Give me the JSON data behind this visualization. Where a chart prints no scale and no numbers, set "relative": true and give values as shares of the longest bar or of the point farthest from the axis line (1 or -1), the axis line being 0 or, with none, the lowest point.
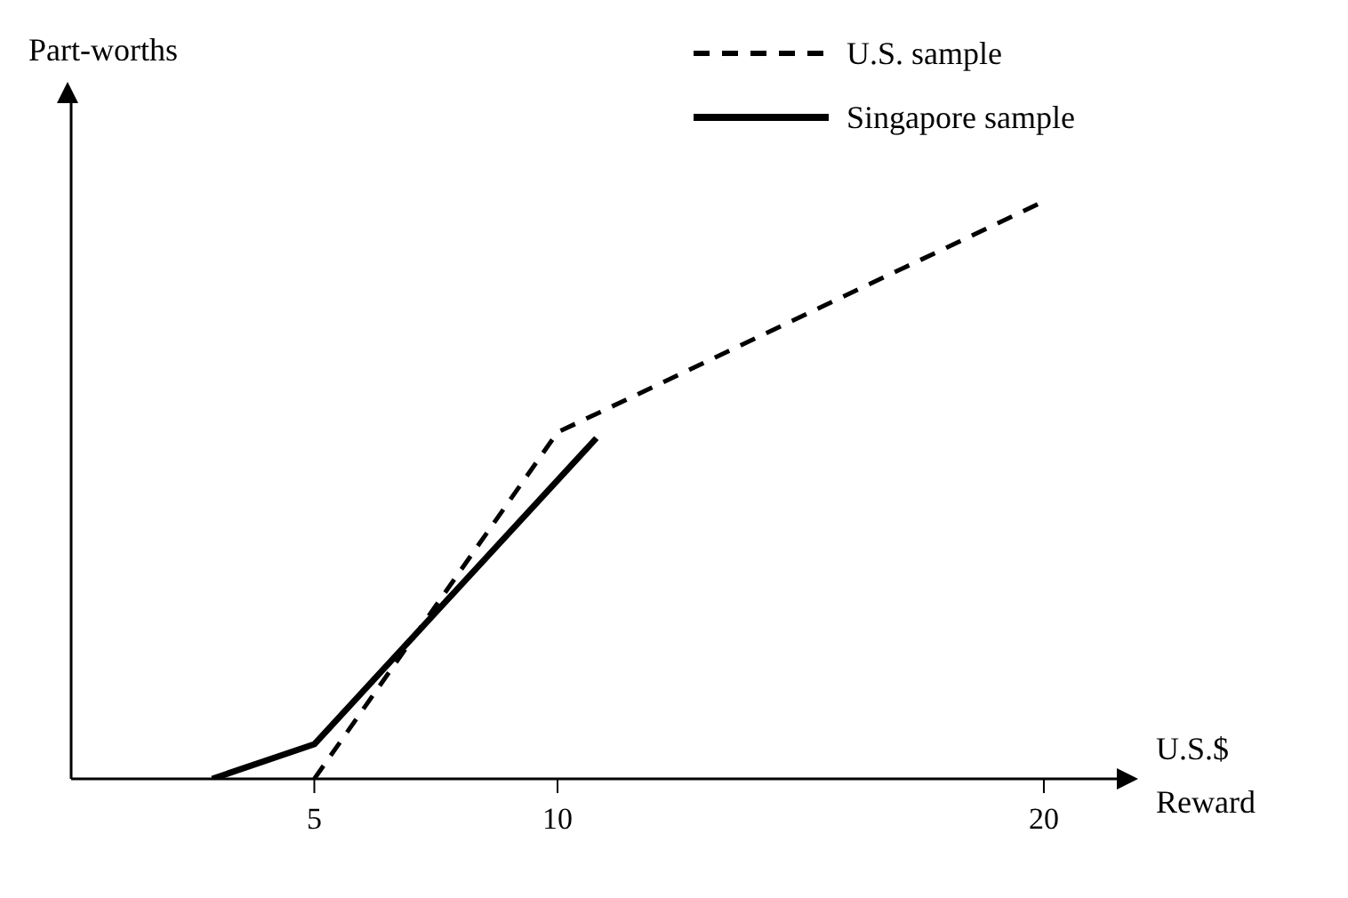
{
  "chart_data": {
    "type": "line",
    "relative": true,
    "xlabel": "U.S.$ Reward",
    "ylabel": "Part-worths",
    "xlim": [
      0,
      21.5
    ],
    "xticks": [
      5,
      10,
      20
    ],
    "legend": "top right",
    "marker": "none",
    "series": [
      {
        "name": "U.S. sample",
        "color": "#000000",
        "line_style": "dashed",
        "x": [
          5,
          10,
          20
        ],
        "values": [
          0,
          0.6,
          1
        ]
      },
      {
        "name": "Singapore sample",
        "color": "#000000",
        "line_style": "solid",
        "x": [
          2.9,
          5,
          10.8
        ],
        "values": [
          0,
          0.06,
          0.59
        ]
      }
    ]
  }
}
